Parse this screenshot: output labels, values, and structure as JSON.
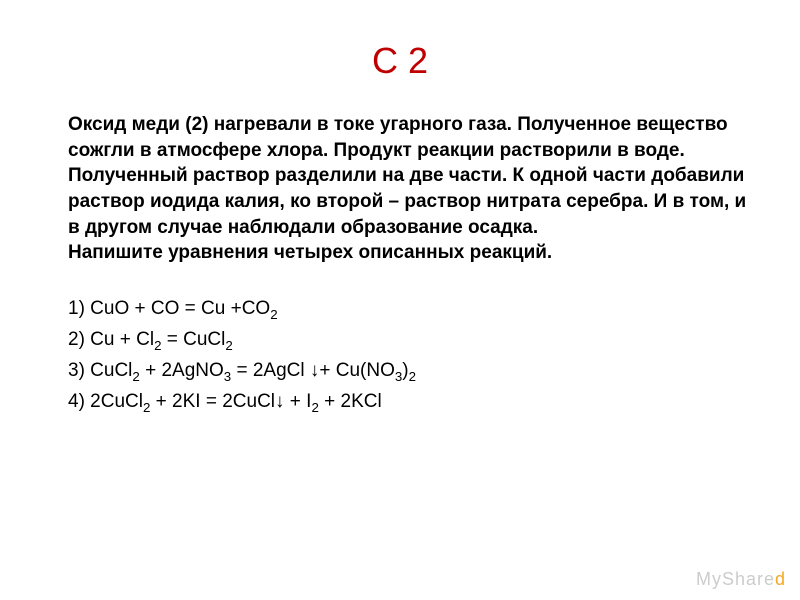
{
  "title": {
    "text": "С 2",
    "color": "#c00000",
    "fontsize": 36
  },
  "body": {
    "text": "Оксид меди (2) нагревали в токе угарного газа. Полученное вещество сожгли в атмосфере хлора. Продукт реакции растворили в воде. Полученный раствор разделили на две части. К одной части добавили раствор иодида калия, ко второй – раствор нитрата серебра. И в том, и в другом случае наблюдали образование осадка.\nНапишите уравнения четырех описанных реакций.",
    "color": "#000000",
    "fontsize": 19,
    "weight": "bold"
  },
  "equations": [
    {
      "html": "1) CuO + CO = Cu +CO<sub>2</sub>"
    },
    {
      "html": "2) Cu + Cl<sub>2</sub> = CuCl<sub>2</sub>"
    },
    {
      "html": "3) CuCl<sub>2</sub> + 2AgNO<sub>3</sub> = 2AgCl ↓+ Cu(NO<sub>3</sub>)<sub>2</sub>"
    },
    {
      "html": "4) 2CuCl<sub>2</sub> + 2KI = 2CuCl↓ + I<sub>2</sub> + 2KCl"
    }
  ],
  "equation_style": {
    "color": "#000000",
    "fontsize": 19,
    "weight": "normal"
  },
  "watermark": {
    "prefix": "MyShare",
    "suffix": "d",
    "prefix_color": "#cccccc",
    "suffix_color": "#f7a823"
  },
  "background_color": "#ffffff"
}
